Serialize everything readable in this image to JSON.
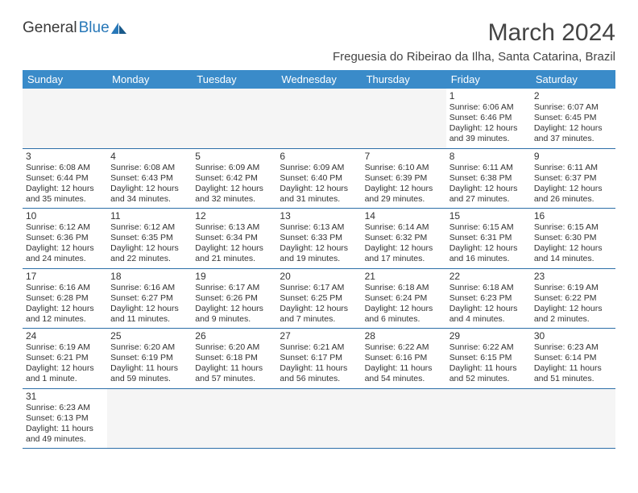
{
  "brand": {
    "part1": "General",
    "part2": "Blue"
  },
  "month_title": "March 2024",
  "location": "Freguesia do Ribeirao da Ilha, Santa Catarina, Brazil",
  "colors": {
    "header_bg": "#3a8bc9",
    "header_fg": "#ffffff",
    "border": "#2d6fa8",
    "empty_bg": "#f5f5f5",
    "brand_blue": "#2878b8"
  },
  "day_headers": [
    "Sunday",
    "Monday",
    "Tuesday",
    "Wednesday",
    "Thursday",
    "Friday",
    "Saturday"
  ],
  "weeks": [
    [
      null,
      null,
      null,
      null,
      null,
      {
        "n": "1",
        "sr": "6:06 AM",
        "ss": "6:46 PM",
        "dl": "12 hours and 39 minutes."
      },
      {
        "n": "2",
        "sr": "6:07 AM",
        "ss": "6:45 PM",
        "dl": "12 hours and 37 minutes."
      }
    ],
    [
      {
        "n": "3",
        "sr": "6:08 AM",
        "ss": "6:44 PM",
        "dl": "12 hours and 35 minutes."
      },
      {
        "n": "4",
        "sr": "6:08 AM",
        "ss": "6:43 PM",
        "dl": "12 hours and 34 minutes."
      },
      {
        "n": "5",
        "sr": "6:09 AM",
        "ss": "6:42 PM",
        "dl": "12 hours and 32 minutes."
      },
      {
        "n": "6",
        "sr": "6:09 AM",
        "ss": "6:40 PM",
        "dl": "12 hours and 31 minutes."
      },
      {
        "n": "7",
        "sr": "6:10 AM",
        "ss": "6:39 PM",
        "dl": "12 hours and 29 minutes."
      },
      {
        "n": "8",
        "sr": "6:11 AM",
        "ss": "6:38 PM",
        "dl": "12 hours and 27 minutes."
      },
      {
        "n": "9",
        "sr": "6:11 AM",
        "ss": "6:37 PM",
        "dl": "12 hours and 26 minutes."
      }
    ],
    [
      {
        "n": "10",
        "sr": "6:12 AM",
        "ss": "6:36 PM",
        "dl": "12 hours and 24 minutes."
      },
      {
        "n": "11",
        "sr": "6:12 AM",
        "ss": "6:35 PM",
        "dl": "12 hours and 22 minutes."
      },
      {
        "n": "12",
        "sr": "6:13 AM",
        "ss": "6:34 PM",
        "dl": "12 hours and 21 minutes."
      },
      {
        "n": "13",
        "sr": "6:13 AM",
        "ss": "6:33 PM",
        "dl": "12 hours and 19 minutes."
      },
      {
        "n": "14",
        "sr": "6:14 AM",
        "ss": "6:32 PM",
        "dl": "12 hours and 17 minutes."
      },
      {
        "n": "15",
        "sr": "6:15 AM",
        "ss": "6:31 PM",
        "dl": "12 hours and 16 minutes."
      },
      {
        "n": "16",
        "sr": "6:15 AM",
        "ss": "6:30 PM",
        "dl": "12 hours and 14 minutes."
      }
    ],
    [
      {
        "n": "17",
        "sr": "6:16 AM",
        "ss": "6:28 PM",
        "dl": "12 hours and 12 minutes."
      },
      {
        "n": "18",
        "sr": "6:16 AM",
        "ss": "6:27 PM",
        "dl": "12 hours and 11 minutes."
      },
      {
        "n": "19",
        "sr": "6:17 AM",
        "ss": "6:26 PM",
        "dl": "12 hours and 9 minutes."
      },
      {
        "n": "20",
        "sr": "6:17 AM",
        "ss": "6:25 PM",
        "dl": "12 hours and 7 minutes."
      },
      {
        "n": "21",
        "sr": "6:18 AM",
        "ss": "6:24 PM",
        "dl": "12 hours and 6 minutes."
      },
      {
        "n": "22",
        "sr": "6:18 AM",
        "ss": "6:23 PM",
        "dl": "12 hours and 4 minutes."
      },
      {
        "n": "23",
        "sr": "6:19 AM",
        "ss": "6:22 PM",
        "dl": "12 hours and 2 minutes."
      }
    ],
    [
      {
        "n": "24",
        "sr": "6:19 AM",
        "ss": "6:21 PM",
        "dl": "12 hours and 1 minute."
      },
      {
        "n": "25",
        "sr": "6:20 AM",
        "ss": "6:19 PM",
        "dl": "11 hours and 59 minutes."
      },
      {
        "n": "26",
        "sr": "6:20 AM",
        "ss": "6:18 PM",
        "dl": "11 hours and 57 minutes."
      },
      {
        "n": "27",
        "sr": "6:21 AM",
        "ss": "6:17 PM",
        "dl": "11 hours and 56 minutes."
      },
      {
        "n": "28",
        "sr": "6:22 AM",
        "ss": "6:16 PM",
        "dl": "11 hours and 54 minutes."
      },
      {
        "n": "29",
        "sr": "6:22 AM",
        "ss": "6:15 PM",
        "dl": "11 hours and 52 minutes."
      },
      {
        "n": "30",
        "sr": "6:23 AM",
        "ss": "6:14 PM",
        "dl": "11 hours and 51 minutes."
      }
    ],
    [
      {
        "n": "31",
        "sr": "6:23 AM",
        "ss": "6:13 PM",
        "dl": "11 hours and 49 minutes."
      },
      null,
      null,
      null,
      null,
      null,
      null
    ]
  ],
  "labels": {
    "sunrise": "Sunrise:",
    "sunset": "Sunset:",
    "daylight": "Daylight:"
  }
}
